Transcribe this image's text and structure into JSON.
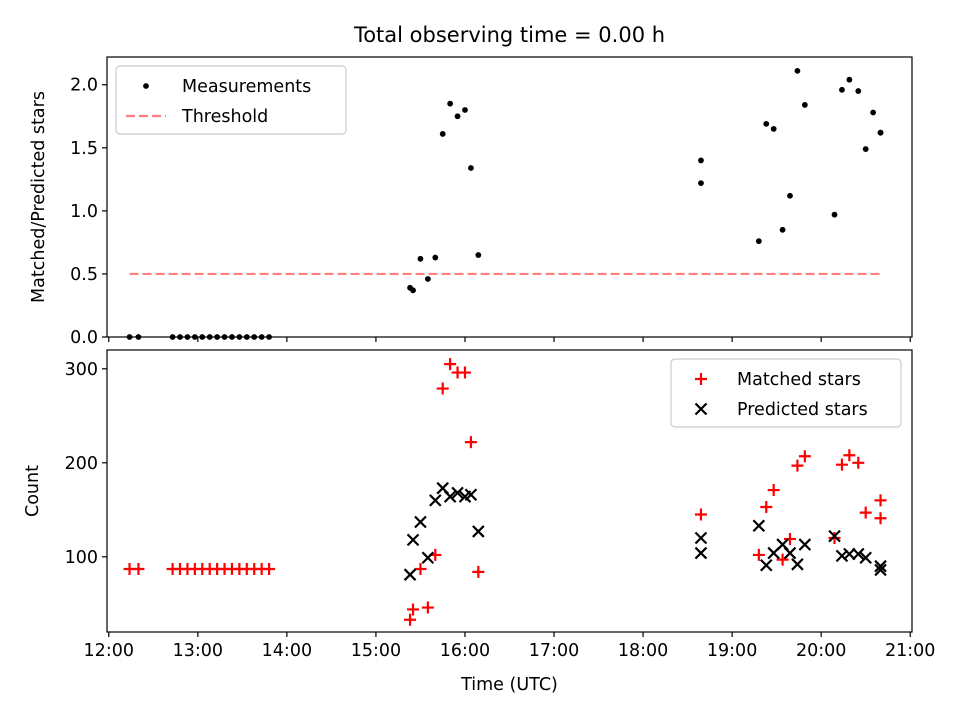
{
  "chart_data": {
    "title": "Total observing time = 0.00 h",
    "xlabel": "Time (UTC)",
    "x_ticks": [
      "12:00",
      "13:00",
      "14:00",
      "15:00",
      "16:00",
      "17:00",
      "18:00",
      "19:00",
      "20:00",
      "21:00"
    ],
    "xlim_hours": [
      11.98,
      21.02
    ],
    "colors": {
      "measurement": "#000000",
      "threshold": "#ff7f7f",
      "matched": "#ff0000",
      "predicted": "#000000"
    },
    "panels": [
      {
        "type": "scatter",
        "ylabel": "Matched/Predicted stars",
        "ylim": [
          0,
          2.22
        ],
        "y_ticks": [
          "0.0",
          "0.5",
          "1.0",
          "1.5",
          "2.0"
        ],
        "legend_position": "top-left",
        "legend": [
          "Measurements",
          "Threshold"
        ],
        "series": [
          {
            "name": "Measurements",
            "marker": "dot",
            "x": [
              "12:14",
              "12:20",
              "12:43",
              "12:48",
              "12:53",
              "12:58",
              "13:03",
              "13:08",
              "13:13",
              "13:18",
              "13:23",
              "13:28",
              "13:33",
              "13:38",
              "13:43",
              "13:48",
              "15:23",
              "15:25",
              "15:30",
              "15:35",
              "15:40",
              "15:45",
              "15:50",
              "15:55",
              "16:00",
              "16:04",
              "16:09",
              "18:39",
              "18:39",
              "19:18",
              "19:23",
              "19:28",
              "19:34",
              "19:39",
              "19:44",
              "19:49",
              "20:09",
              "20:14",
              "20:19",
              "20:25",
              "20:30",
              "20:35",
              "20:40",
              "20:40"
            ],
            "y": [
              0,
              0,
              0,
              0,
              0,
              0,
              0,
              0,
              0,
              0,
              0,
              0,
              0,
              0,
              0,
              0,
              0.39,
              0.37,
              0.62,
              0.46,
              0.63,
              1.61,
              1.85,
              1.75,
              1.8,
              1.34,
              0.65,
              1.4,
              1.22,
              0.76,
              1.69,
              1.65,
              0.85,
              1.12,
              2.11,
              1.84,
              0.97,
              1.96,
              2.04,
              1.95,
              1.49,
              1.78,
              1.62,
              1.62
            ]
          },
          {
            "name": "Threshold",
            "style": "dashed",
            "x": [
              "12:14",
              "20:40"
            ],
            "y": [
              0.5,
              0.5
            ]
          }
        ]
      },
      {
        "type": "scatter",
        "ylabel": "Count",
        "ylim": [
          20,
          320
        ],
        "y_ticks": [
          "100",
          "200",
          "300"
        ],
        "legend_position": "top-right",
        "legend": [
          "Matched stars",
          "Predicted stars"
        ],
        "series": [
          {
            "name": "Matched stars",
            "marker": "plus",
            "x": [
              "12:14",
              "12:20",
              "12:43",
              "12:48",
              "12:53",
              "12:58",
              "13:03",
              "13:08",
              "13:13",
              "13:18",
              "13:23",
              "13:28",
              "13:33",
              "13:38",
              "13:43",
              "13:48",
              "15:23",
              "15:25",
              "15:30",
              "15:35",
              "15:40",
              "15:45",
              "15:50",
              "15:55",
              "16:00",
              "16:04",
              "16:09",
              "18:39",
              "19:18",
              "19:23",
              "19:28",
              "19:34",
              "19:39",
              "19:44",
              "19:49",
              "20:09",
              "20:14",
              "20:19",
              "20:25",
              "20:30",
              "20:40",
              "20:40"
            ],
            "y": [
              87,
              87,
              87,
              87,
              87,
              87,
              87,
              87,
              87,
              87,
              87,
              87,
              87,
              87,
              87,
              87,
              33,
              44,
              87,
              46,
              102,
              279,
              305,
              296,
              296,
              222,
              84,
              145,
              102,
              153,
              171,
              97,
              119,
              197,
              207,
              120,
              198,
              208,
              200,
              147,
              160,
              141
            ]
          },
          {
            "name": "Predicted stars",
            "marker": "x",
            "x": [
              "15:23",
              "15:25",
              "15:30",
              "15:35",
              "15:40",
              "15:45",
              "15:50",
              "15:55",
              "16:00",
              "16:04",
              "16:09",
              "18:39",
              "18:39",
              "19:18",
              "19:23",
              "19:28",
              "19:34",
              "19:39",
              "19:44",
              "19:49",
              "20:09",
              "20:14",
              "20:19",
              "20:25",
              "20:30",
              "20:40",
              "20:40"
            ],
            "y": [
              81,
              118,
              137,
              99,
              160,
              173,
              164,
              168,
              164,
              166,
              127,
              120,
              104,
              133,
              91,
              104,
              113,
              104,
              92,
              113,
              122,
              101,
              103,
              103,
              99,
              90,
              86
            ]
          }
        ]
      }
    ]
  }
}
